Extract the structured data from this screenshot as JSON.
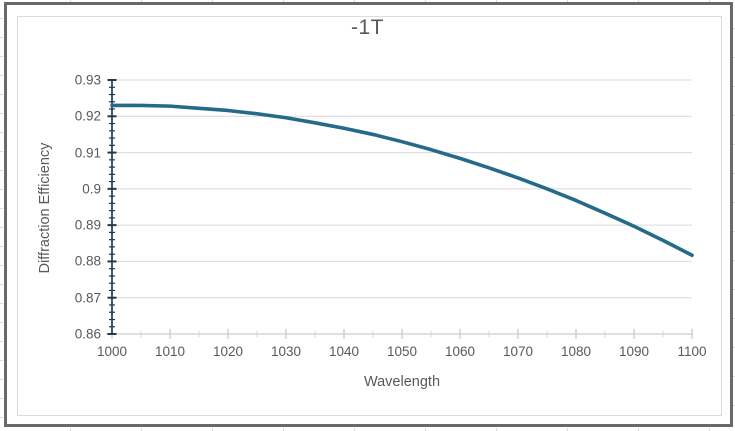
{
  "chart_data": {
    "type": "line",
    "title": "-1T",
    "xlabel": "Wavelength",
    "ylabel": "Diffraction Efficiency",
    "xlim": [
      1000,
      1100
    ],
    "ylim": [
      0.86,
      0.93
    ],
    "x_major_unit": 10,
    "x_minor_unit": 5,
    "y_major_unit": 0.01,
    "y_minor_unit": 0.002,
    "x_tick_labels": [
      "1000",
      "1010",
      "1020",
      "1030",
      "1040",
      "1050",
      "1060",
      "1070",
      "1080",
      "1090",
      "1100"
    ],
    "y_tick_labels": [
      "0.93",
      "0.92",
      "0.91",
      "0.9",
      "0.89",
      "0.88",
      "0.87",
      "0.86"
    ],
    "grid": "horizontal",
    "legend": "none",
    "x": [
      1000,
      1005,
      1010,
      1015,
      1020,
      1025,
      1030,
      1035,
      1040,
      1045,
      1050,
      1055,
      1060,
      1065,
      1070,
      1075,
      1080,
      1085,
      1090,
      1095,
      1100
    ],
    "series": [
      {
        "name": "-1T",
        "values": [
          0.923,
          0.923,
          0.9228,
          0.9222,
          0.9216,
          0.9207,
          0.9196,
          0.9182,
          0.9167,
          0.915,
          0.913,
          0.9108,
          0.9084,
          0.9058,
          0.903,
          0.9,
          0.8968,
          0.8933,
          0.8897,
          0.8858,
          0.8817
        ]
      }
    ],
    "colors": {
      "series": "#256a89",
      "gridline": "#d9d9d9",
      "y_axis": "#1d3a55",
      "x_axis": "#d6d6d6",
      "x_tick": "#c9c9c9",
      "text": "#595959",
      "frame": "#696969"
    }
  }
}
